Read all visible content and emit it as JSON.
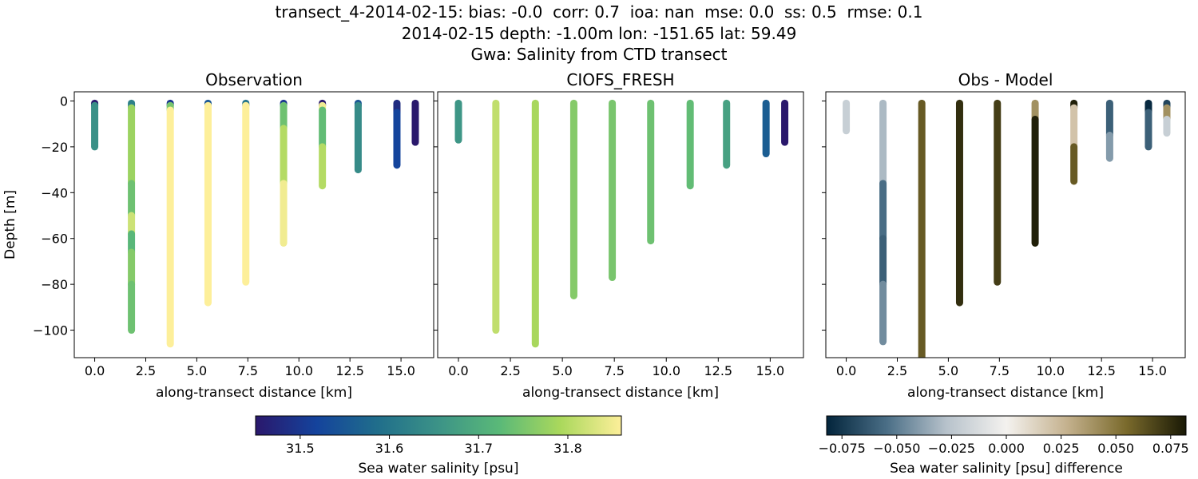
{
  "figure": {
    "title_lines": [
      "transect_4-2014-02-15: bias: -0.0  corr: 0.7  ioa: nan  mse: 0.0  ss: 0.5  rmse: 0.1",
      "2014-02-15 depth: -1.00m lon: -151.65 lat: 59.49",
      "Gwa: Salinity from CTD transect"
    ]
  },
  "colors": {
    "colormap_haline": [
      "#2a186c",
      "#14439c",
      "#206e8b",
      "#3c9387",
      "#5ab978",
      "#aad85c",
      "#fdef9a"
    ],
    "colormap_diff": [
      "#03253c",
      "#4a6e86",
      "#b7c2cb",
      "#f4f2ef",
      "#c5b28f",
      "#7a6a2c",
      "#191905"
    ]
  },
  "chart_data": [
    {
      "type": "scatter",
      "title": "Observation",
      "xlabel": "along-transect distance [km]",
      "ylabel": "Depth [m]",
      "xlim": [
        -1.0,
        16.6
      ],
      "ylim": [
        -112,
        4
      ],
      "xticks": [
        0.0,
        2.5,
        5.0,
        7.5,
        10.0,
        12.5,
        15.0
      ],
      "xtick_labels": [
        "0.0",
        "2.5",
        "5.0",
        "7.5",
        "10.0",
        "12.5",
        "15.0"
      ],
      "yticks": [
        0,
        -20,
        -40,
        -60,
        -80,
        -100
      ],
      "ytick_labels": [
        "0",
        "−20",
        "−40",
        "−60",
        "−80",
        "−100"
      ],
      "colormap": "haline",
      "color_range": [
        31.45,
        31.86
      ],
      "profiles": [
        {
          "x": 0.0,
          "segments": [
            [
              -1,
              -2,
              31.45
            ],
            [
              -2,
              -20,
              31.65
            ]
          ]
        },
        {
          "x": 1.8,
          "segments": [
            [
              -1,
              -3,
              31.62
            ],
            [
              -3,
              -36,
              31.78
            ],
            [
              -36,
              -50,
              31.74
            ],
            [
              -50,
              -58,
              31.82
            ],
            [
              -58,
              -66,
              31.72
            ],
            [
              -66,
              -80,
              31.76
            ],
            [
              -80,
              -100,
              31.74
            ]
          ]
        },
        {
          "x": 3.7,
          "segments": [
            [
              -1,
              -2,
              31.5
            ],
            [
              -2,
              -4,
              31.75
            ],
            [
              -4,
              -106,
              31.86
            ]
          ]
        },
        {
          "x": 5.55,
          "segments": [
            [
              -1,
              -2,
              31.55
            ],
            [
              -2,
              -88,
              31.86
            ]
          ]
        },
        {
          "x": 7.4,
          "segments": [
            [
              -1,
              -2,
              31.6
            ],
            [
              -2,
              -79,
              31.86
            ]
          ]
        },
        {
          "x": 9.25,
          "segments": [
            [
              -1,
              -2,
              31.5
            ],
            [
              -2,
              -12,
              31.74
            ],
            [
              -12,
              -36,
              31.8
            ],
            [
              -36,
              -62,
              31.85
            ]
          ]
        },
        {
          "x": 11.15,
          "segments": [
            [
              -1,
              -2,
              31.45
            ],
            [
              -2,
              -4,
              31.85
            ],
            [
              -4,
              -20,
              31.73
            ],
            [
              -20,
              -37,
              31.8
            ]
          ]
        },
        {
          "x": 12.9,
          "segments": [
            [
              -1,
              -2,
              31.55
            ],
            [
              -2,
              -30,
              31.64
            ]
          ]
        },
        {
          "x": 14.8,
          "segments": [
            [
              -1,
              -5,
              31.48
            ],
            [
              -5,
              -28,
              31.52
            ]
          ]
        },
        {
          "x": 15.7,
          "segments": [
            [
              -1,
              -18,
              31.45
            ]
          ]
        }
      ]
    },
    {
      "type": "scatter",
      "title": "CIOFS_FRESH",
      "xlabel": "along-transect distance [km]",
      "ylabel": "",
      "xlim": [
        -1.0,
        16.6
      ],
      "ylim": [
        -112,
        4
      ],
      "xticks": [
        0.0,
        2.5,
        5.0,
        7.5,
        10.0,
        12.5,
        15.0
      ],
      "xtick_labels": [
        "0.0",
        "2.5",
        "5.0",
        "7.5",
        "10.0",
        "12.5",
        "15.0"
      ],
      "yticks": [
        0,
        -20,
        -40,
        -60,
        -80,
        -100
      ],
      "ytick_labels": [],
      "colormap": "haline",
      "color_range": [
        31.45,
        31.86
      ],
      "profiles": [
        {
          "x": 0.0,
          "segments": [
            [
              -1,
              -17,
              31.66
            ]
          ]
        },
        {
          "x": 1.8,
          "segments": [
            [
              -1,
              -100,
              31.81
            ]
          ]
        },
        {
          "x": 3.7,
          "segments": [
            [
              -1,
              -106,
              31.79
            ]
          ]
        },
        {
          "x": 5.55,
          "segments": [
            [
              -1,
              -85,
              31.76
            ]
          ]
        },
        {
          "x": 7.4,
          "segments": [
            [
              -1,
              -77,
              31.75
            ]
          ]
        },
        {
          "x": 9.25,
          "segments": [
            [
              -1,
              -61,
              31.74
            ]
          ]
        },
        {
          "x": 11.15,
          "segments": [
            [
              -1,
              -37,
              31.73
            ]
          ]
        },
        {
          "x": 12.9,
          "segments": [
            [
              -1,
              -28,
              31.68
            ]
          ]
        },
        {
          "x": 14.8,
          "segments": [
            [
              -1,
              -23,
              31.56
            ]
          ]
        },
        {
          "x": 15.7,
          "segments": [
            [
              -1,
              -18,
              31.45
            ]
          ]
        }
      ]
    },
    {
      "type": "scatter",
      "title": "Obs - Model",
      "xlabel": "along-transect distance [km]",
      "ylabel": "",
      "xlim": [
        -1.0,
        16.6
      ],
      "ylim": [
        -112,
        4
      ],
      "xticks": [
        0.0,
        2.5,
        5.0,
        7.5,
        10.0,
        12.5,
        15.0
      ],
      "xtick_labels": [
        "0.0",
        "2.5",
        "5.0",
        "7.5",
        "10.0",
        "12.5",
        "15.0"
      ],
      "yticks": [
        0,
        -20,
        -40,
        -60,
        -80,
        -100
      ],
      "ytick_labels": [],
      "colormap": "diff",
      "color_range": [
        -0.082,
        0.082
      ],
      "profiles": [
        {
          "x": 0.0,
          "segments": [
            [
              -1,
              -13,
              -0.02
            ]
          ]
        },
        {
          "x": 1.8,
          "segments": [
            [
              -1,
              -36,
              -0.03
            ],
            [
              -36,
              -60,
              -0.055
            ],
            [
              -60,
              -80,
              -0.06
            ],
            [
              -80,
              -105,
              -0.045
            ]
          ]
        },
        {
          "x": 3.7,
          "segments": [
            [
              -1,
              -112,
              0.06
            ]
          ]
        },
        {
          "x": 5.55,
          "segments": [
            [
              -1,
              -88,
              0.075
            ]
          ]
        },
        {
          "x": 7.4,
          "segments": [
            [
              -1,
              -79,
              0.07
            ]
          ]
        },
        {
          "x": 9.25,
          "segments": [
            [
              -1,
              -8,
              0.04
            ],
            [
              -8,
              -62,
              0.08
            ]
          ]
        },
        {
          "x": 11.15,
          "segments": [
            [
              -1,
              -3,
              0.08
            ],
            [
              -3,
              -20,
              0.02
            ],
            [
              -20,
              -35,
              0.06
            ]
          ]
        },
        {
          "x": 12.9,
          "segments": [
            [
              -1,
              -15,
              -0.06
            ],
            [
              -15,
              -25,
              -0.04
            ]
          ]
        },
        {
          "x": 14.8,
          "segments": [
            [
              -1,
              -5,
              -0.08
            ],
            [
              -5,
              -20,
              -0.06
            ]
          ]
        },
        {
          "x": 15.7,
          "segments": [
            [
              -1,
              -3,
              -0.07
            ],
            [
              -3,
              -8,
              0.04
            ],
            [
              -8,
              -14,
              -0.02
            ]
          ]
        }
      ]
    }
  ],
  "colorbars": [
    {
      "label": "Sea water salinity [psu]",
      "colormap": "haline",
      "range": [
        31.45,
        31.86
      ],
      "ticks": [
        31.5,
        31.6,
        31.7,
        31.8
      ],
      "tick_labels": [
        "31.5",
        "31.6",
        "31.7",
        "31.8"
      ]
    },
    {
      "label": "Sea water salinity [psu] difference",
      "colormap": "diff",
      "range": [
        -0.082,
        0.082
      ],
      "ticks": [
        -0.075,
        -0.05,
        -0.025,
        0.0,
        0.025,
        0.05,
        0.075
      ],
      "tick_labels": [
        "−0.075",
        "−0.050",
        "−0.025",
        "0.000",
        "0.025",
        "0.050",
        "0.075"
      ]
    }
  ]
}
